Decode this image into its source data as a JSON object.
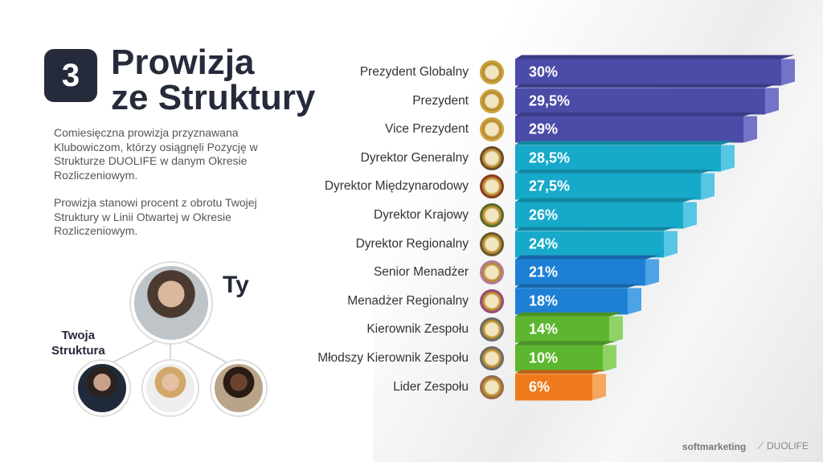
{
  "slide": {
    "number": "3",
    "title_line1": "Prowizja",
    "title_line2": "ze Struktury",
    "paragraph1": "Comiesięczna prowizja przyznawana Klubowiczom, którzy osiągnęli Pozycję w Strukturze DUOLIFE w danym Okresie Rozliczeniowym.",
    "paragraph2": "Prowizja stanowi procent z obrotu Twojej Struktury w Linii Otwartej w Okresie Rozliczeniowym.",
    "you_label": "Ty",
    "structure_label_1": "Twoja",
    "structure_label_2": "Struktura"
  },
  "footer": {
    "brand1": "softmarketing",
    "brand2": "DUOLIFE"
  },
  "chart_data": {
    "type": "bar",
    "orientation": "horizontal",
    "title": "Prowizja ze Struktury",
    "categories": [
      "Prezydent Globalny",
      "Prezydent",
      "Vice Prezydent",
      "Dyrektor Generalny",
      "Dyrektor Międzynarodowy",
      "Dyrektor Krajowy",
      "Dyrektor Regionalny",
      "Senior Menadżer",
      "Menadżer Regionalny",
      "Kierownik Zespołu",
      "Młodszy Kierownik Zespołu",
      "Lider Zespołu"
    ],
    "values": [
      30,
      29.5,
      29,
      28.5,
      27.5,
      26,
      24,
      21,
      18,
      14,
      10,
      6
    ],
    "labels": [
      "30%",
      "29,5%",
      "29%",
      "28,5%",
      "27,5%",
      "26%",
      "24%",
      "21%",
      "18%",
      "14%",
      "10%",
      "6%"
    ],
    "colors": [
      "#4b4ba8",
      "#4b4ba8",
      "#4b4ba8",
      "#17a9c9",
      "#17a9c9",
      "#17a9c9",
      "#17a9c9",
      "#1e80d4",
      "#1e80d4",
      "#5db62f",
      "#5db62f",
      "#ef7a1c"
    ],
    "side_colors": [
      "#7373c9",
      "#7373c9",
      "#7373c9",
      "#56c6e4",
      "#56c6e4",
      "#56c6e4",
      "#56c6e4",
      "#4ea2e6",
      "#4ea2e6",
      "#8fd266",
      "#8fd266",
      "#f7a65e"
    ]
  }
}
